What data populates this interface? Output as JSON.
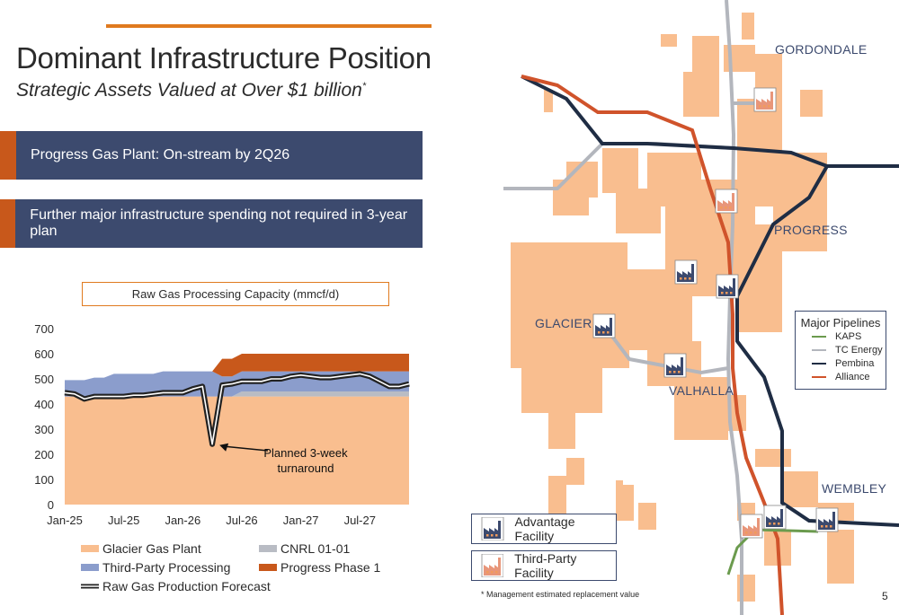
{
  "header": {
    "title": "Dominant Infrastructure Position",
    "subtitle": "Strategic Assets Valued at Over $1 billion",
    "subtitle_mark": "*"
  },
  "banners": [
    {
      "text": "Progress Gas Plant: On-stream by 2Q26"
    },
    {
      "text": "Further major infrastructure spending not required in 3-year plan"
    }
  ],
  "chart_data": {
    "type": "area",
    "title": "Raw Gas Processing Capacity (mmcf/d)",
    "x_tick_labels": [
      "Jan-25",
      "Jul-25",
      "Jan-26",
      "Jul-26",
      "Jan-27",
      "Jul-27"
    ],
    "x": [
      "Jan-25",
      "Feb-25",
      "Mar-25",
      "Apr-25",
      "May-25",
      "Jun-25",
      "Jul-25",
      "Aug-25",
      "Sep-25",
      "Oct-25",
      "Nov-25",
      "Dec-25",
      "Jan-26",
      "Feb-26",
      "Mar-26",
      "Apr-26",
      "May-26",
      "Jun-26",
      "Jul-26",
      "Aug-26",
      "Sep-26",
      "Oct-26",
      "Nov-26",
      "Dec-26",
      "Jan-27",
      "Feb-27",
      "Mar-27",
      "Apr-27",
      "May-27",
      "Jun-27",
      "Jul-27",
      "Aug-27",
      "Sep-27",
      "Oct-27",
      "Nov-27",
      "Dec-27"
    ],
    "ylim": [
      0,
      700
    ],
    "yticks": [
      0,
      100,
      200,
      300,
      400,
      500,
      600,
      700
    ],
    "series": [
      {
        "name": "Glacier Gas Plant",
        "color": "#f9be8f",
        "values": [
          430,
          430,
          430,
          430,
          430,
          430,
          430,
          430,
          430,
          430,
          430,
          430,
          430,
          430,
          430,
          430,
          430,
          430,
          430,
          430,
          430,
          430,
          430,
          430,
          430,
          430,
          430,
          430,
          430,
          430,
          430,
          430,
          430,
          430,
          430,
          430
        ]
      },
      {
        "name": "CNRL 01-01",
        "color": "#b9bcc4",
        "values": [
          0,
          0,
          0,
          0,
          0,
          0,
          0,
          0,
          0,
          0,
          0,
          0,
          0,
          0,
          0,
          0,
          0,
          0,
          20,
          20,
          20,
          20,
          20,
          20,
          20,
          20,
          20,
          20,
          20,
          20,
          20,
          20,
          20,
          20,
          20,
          20
        ]
      },
      {
        "name": "Third-Party Processing",
        "color": "#8b9dcc",
        "values": [
          65,
          65,
          65,
          75,
          75,
          90,
          90,
          90,
          90,
          90,
          100,
          100,
          100,
          100,
          100,
          100,
          80,
          80,
          80,
          80,
          80,
          80,
          80,
          80,
          80,
          80,
          80,
          80,
          80,
          80,
          80,
          80,
          80,
          80,
          80,
          80
        ]
      },
      {
        "name": "Progress Phase 1",
        "color": "#c8581b",
        "values": [
          0,
          0,
          0,
          0,
          0,
          0,
          0,
          0,
          0,
          0,
          0,
          0,
          0,
          0,
          0,
          0,
          70,
          70,
          70,
          70,
          70,
          70,
          70,
          70,
          70,
          70,
          70,
          70,
          70,
          70,
          70,
          70,
          70,
          70,
          70,
          70
        ]
      },
      {
        "name": "Raw Gas Production Forecast",
        "color": "#222222",
        "values": [
          445,
          440,
          420,
          430,
          430,
          430,
          430,
          435,
          435,
          440,
          445,
          445,
          445,
          460,
          470,
          240,
          475,
          480,
          490,
          490,
          490,
          500,
          500,
          510,
          515,
          510,
          505,
          505,
          510,
          515,
          520,
          510,
          490,
          470,
          470,
          480
        ]
      }
    ],
    "annotation": {
      "text_line1": "Planned 3-week",
      "text_line2": "turnaround",
      "target_x": "Apr-26",
      "target_y": 240
    }
  },
  "legend": {
    "glacier": "Glacier Gas Plant",
    "cnrl": "CNRL 01-01",
    "third_party": "Third-Party Processing",
    "progress": "Progress Phase 1",
    "forecast": "Raw Gas Production Forecast"
  },
  "map": {
    "labels": {
      "gordondale": "GORDONDALE",
      "progress": "PROGRESS",
      "glacier": "GLACIER",
      "valhalla": "VALHALLA",
      "wembley": "WEMBLEY"
    },
    "pipelines": {
      "title": "Major Pipelines",
      "items": [
        {
          "label": "KAPS",
          "color": "#6b9b4e"
        },
        {
          "label": "TC Energy",
          "color": "#b3b6bd"
        },
        {
          "label": "Pembina",
          "color": "#1f2d44"
        },
        {
          "label": "Alliance",
          "color": "#d0532b"
        }
      ]
    },
    "facility_legend": {
      "advantage": "Advantage Facility",
      "third_party": "Third-Party Facility"
    },
    "colors": {
      "land": "#f9be8f",
      "advantage_icon": "#3c4a6e",
      "third_party_icon": "#e8967a"
    }
  },
  "footer": {
    "footnote": "* Management estimated replacement value",
    "page": "5"
  }
}
